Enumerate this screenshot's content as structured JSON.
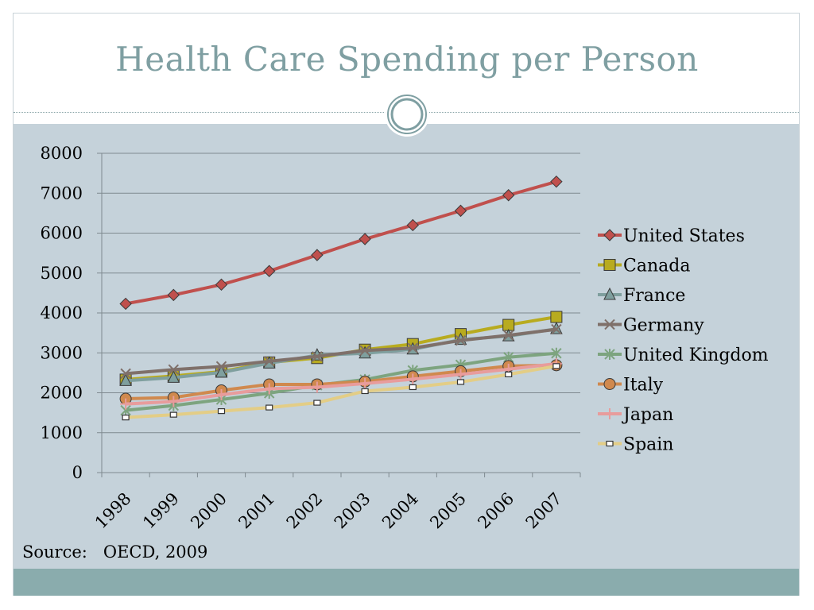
{
  "slide": {
    "title": "Health Care Spending per Person",
    "source_label": "Source:",
    "source_text": "OECD, 2009"
  },
  "chart_data": {
    "type": "line",
    "title": "",
    "xlabel": "",
    "ylabel": "",
    "categories": [
      "1998",
      "1999",
      "2000",
      "2001",
      "2002",
      "2003",
      "2004",
      "2005",
      "2006",
      "2007"
    ],
    "ylim": [
      0,
      8000
    ],
    "yticks": [
      0,
      1000,
      2000,
      3000,
      4000,
      5000,
      6000,
      7000,
      8000
    ],
    "grid": true,
    "legend_position": "right",
    "series": [
      {
        "name": "United States",
        "color": "#c0504d",
        "marker": "diamond",
        "values": [
          4230,
          4450,
          4710,
          5050,
          5450,
          5850,
          6200,
          6560,
          6950,
          7290
        ]
      },
      {
        "name": "Canada",
        "color": "#b8ab1f",
        "marker": "square",
        "values": [
          2330,
          2420,
          2530,
          2760,
          2870,
          3080,
          3220,
          3470,
          3700,
          3900
        ]
      },
      {
        "name": "France",
        "color": "#7f9f9e",
        "marker": "triangle",
        "values": [
          2300,
          2380,
          2510,
          2740,
          2940,
          2990,
          3090,
          3330,
          3420,
          3600
        ]
      },
      {
        "name": "Germany",
        "color": "#7f706a",
        "marker": "x",
        "values": [
          2480,
          2580,
          2660,
          2790,
          2910,
          3060,
          3120,
          3310,
          3440,
          3590
        ]
      },
      {
        "name": "United Kingdom",
        "color": "#7da47f",
        "marker": "star",
        "values": [
          1560,
          1680,
          1830,
          1990,
          2190,
          2330,
          2560,
          2700,
          2890,
          2990
        ]
      },
      {
        "name": "Italy",
        "color": "#d0894e",
        "marker": "circle",
        "values": [
          1850,
          1880,
          2060,
          2210,
          2210,
          2280,
          2410,
          2540,
          2670,
          2690
        ]
      },
      {
        "name": "Japan",
        "color": "#e89c9c",
        "marker": "plus",
        "values": [
          1720,
          1780,
          1950,
          2100,
          2140,
          2230,
          2340,
          2460,
          2590,
          2730
        ]
      },
      {
        "name": "Spain",
        "color": "#e3cd86",
        "marker": "smallsquare",
        "values": [
          1380,
          1450,
          1540,
          1630,
          1750,
          2040,
          2140,
          2270,
          2460,
          2670
        ]
      }
    ]
  }
}
